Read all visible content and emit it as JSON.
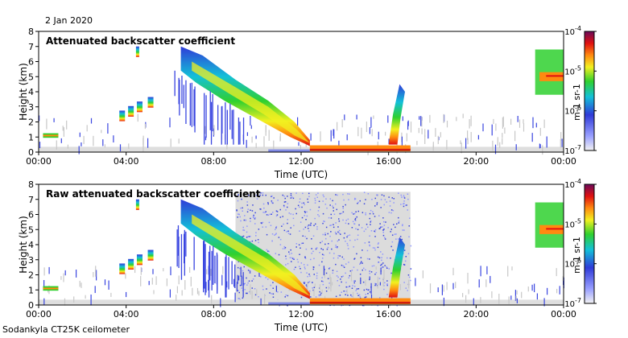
{
  "date": "2 Jan 2020",
  "footer": "Sodankyla CT25K ceilometer",
  "chart_data": [
    {
      "type": "heatmap",
      "title": "Attenuated backscatter coefficient",
      "xlabel": "Time (UTC)",
      "ylabel": "Height (km)",
      "x_ticks": [
        "00:00",
        "04:00",
        "08:00",
        "12:00",
        "16:00",
        "20:00",
        "00:00"
      ],
      "xlim_hours": [
        0,
        24
      ],
      "ylim_km": [
        0,
        8
      ],
      "y_ticks": [
        0,
        1,
        2,
        3,
        4,
        5,
        6,
        7,
        8
      ],
      "colorbar": {
        "scale": "log",
        "range": [
          1e-07,
          0.0001
        ],
        "unit": "m-1 sr-1",
        "tick_labels": [
          "10-7",
          "10-6",
          "10-5",
          "10-4"
        ]
      },
      "features": [
        {
          "kind": "low_layer",
          "start_hour": 0.2,
          "end_hour": 0.9,
          "height_km": 1.1
        },
        {
          "kind": "cloud_patches",
          "hours": [
            3.8,
            4.2,
            4.6,
            5.1
          ],
          "heights_km": [
            2.4,
            2.7,
            3.0,
            3.3
          ]
        },
        {
          "kind": "descending_cloud",
          "start_hour": 6.5,
          "end_hour": 12.4,
          "top_start_km": 7.0,
          "base_end_km": 0.4
        },
        {
          "kind": "surface_layer",
          "start_hour": 12.4,
          "end_hour": 17.0,
          "height_km": 0.2
        },
        {
          "kind": "rising_plume",
          "hour": 16.3,
          "from_km": 0.5,
          "to_km": 4.5
        },
        {
          "kind": "cloud",
          "start_hour": 22.7,
          "end_hour": 24.0,
          "height_km": 5.0
        }
      ]
    },
    {
      "type": "heatmap",
      "title": "Raw attenuated backscatter coefficient",
      "xlabel": "Time (UTC)",
      "ylabel": "Height (km)",
      "x_ticks": [
        "00:00",
        "04:00",
        "08:00",
        "12:00",
        "16:00",
        "20:00",
        "00:00"
      ],
      "xlim_hours": [
        0,
        24
      ],
      "ylim_km": [
        0,
        8
      ],
      "y_ticks": [
        0,
        1,
        2,
        3,
        4,
        5,
        6,
        7,
        8
      ],
      "colorbar": {
        "scale": "log",
        "range": [
          1e-07,
          0.0001
        ],
        "unit": "m-1 sr-1",
        "tick_labels": [
          "10-7",
          "10-6",
          "10-5",
          "10-4"
        ]
      },
      "features": [
        {
          "kind": "low_layer",
          "start_hour": 0.2,
          "end_hour": 0.9,
          "height_km": 1.1
        },
        {
          "kind": "cloud_patches",
          "hours": [
            3.8,
            4.2,
            4.6,
            5.1
          ],
          "heights_km": [
            2.4,
            2.7,
            3.0,
            3.3
          ]
        },
        {
          "kind": "descending_cloud",
          "start_hour": 6.5,
          "end_hour": 12.4,
          "top_start_km": 7.0,
          "base_end_km": 0.4
        },
        {
          "kind": "surface_layer",
          "start_hour": 12.4,
          "end_hour": 17.0,
          "height_km": 0.2
        },
        {
          "kind": "rising_plume",
          "hour": 16.3,
          "from_km": 0.5,
          "to_km": 4.5
        },
        {
          "kind": "cloud",
          "start_hour": 22.7,
          "end_hour": 24.0,
          "height_km": 5.0
        },
        {
          "kind": "noise_region",
          "start_hour": 9.0,
          "end_hour": 17.0
        }
      ]
    }
  ]
}
